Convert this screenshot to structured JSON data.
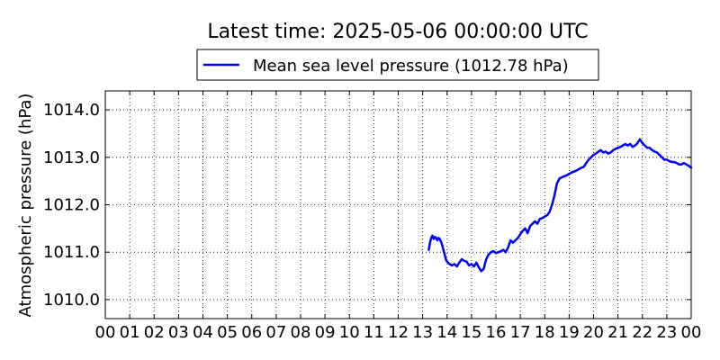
{
  "chart_data": {
    "type": "line",
    "title": "Latest time: 2025-05-06 00:00:00 UTC",
    "xlabel": "",
    "ylabel": "Atmospheric pressure (hPa)",
    "xlim": [
      0,
      24
    ],
    "ylim": [
      1009.6,
      1014.4
    ],
    "grid": true,
    "legend_position": "top-center",
    "x_tick_labels": [
      "00",
      "01",
      "02",
      "03",
      "04",
      "05",
      "06",
      "07",
      "08",
      "09",
      "10",
      "11",
      "12",
      "13",
      "14",
      "15",
      "16",
      "17",
      "18",
      "19",
      "20",
      "21",
      "22",
      "23",
      "00"
    ],
    "y_ticks": [
      1010.0,
      1011.0,
      1012.0,
      1013.0,
      1014.0
    ],
    "y_tick_labels": [
      "1010.0",
      "1011.0",
      "1012.0",
      "1013.0",
      "1014.0"
    ],
    "series": [
      {
        "name": "Mean sea level pressure (1012.78 hPa)",
        "color": "#0000ff",
        "x": [
          13.25,
          13.3,
          13.35,
          13.4,
          13.45,
          13.5,
          13.55,
          13.6,
          13.65,
          13.7,
          13.75,
          13.8,
          13.85,
          13.9,
          13.95,
          14.0,
          14.1,
          14.2,
          14.3,
          14.4,
          14.5,
          14.6,
          14.7,
          14.8,
          14.9,
          15.0,
          15.1,
          15.2,
          15.3,
          15.4,
          15.5,
          15.6,
          15.7,
          15.8,
          15.9,
          16.0,
          16.1,
          16.2,
          16.3,
          16.4,
          16.5,
          16.6,
          16.7,
          16.8,
          16.9,
          17.0,
          17.1,
          17.2,
          17.3,
          17.4,
          17.5,
          17.6,
          17.7,
          17.8,
          17.9,
          18.0,
          18.1,
          18.2,
          18.3,
          18.4,
          18.5,
          18.6,
          18.7,
          18.8,
          18.9,
          19.0,
          19.1,
          19.2,
          19.3,
          19.4,
          19.5,
          19.6,
          19.7,
          19.8,
          19.9,
          20.0,
          20.1,
          20.2,
          20.3,
          20.4,
          20.5,
          20.6,
          20.7,
          20.8,
          20.9,
          21.0,
          21.1,
          21.2,
          21.3,
          21.4,
          21.5,
          21.6,
          21.7,
          21.8,
          21.9,
          22.0,
          22.1,
          22.2,
          22.3,
          22.4,
          22.5,
          22.6,
          22.7,
          22.8,
          22.9,
          23.0,
          23.1,
          23.2,
          23.3,
          23.4,
          23.5,
          23.6,
          23.7,
          23.8,
          23.9,
          24.0
        ],
        "values": [
          1011.05,
          1011.2,
          1011.3,
          1011.35,
          1011.28,
          1011.32,
          1011.3,
          1011.25,
          1011.3,
          1011.28,
          1011.22,
          1011.15,
          1011.05,
          1010.95,
          1010.85,
          1010.8,
          1010.75,
          1010.72,
          1010.75,
          1010.7,
          1010.78,
          1010.85,
          1010.82,
          1010.8,
          1010.72,
          1010.75,
          1010.7,
          1010.78,
          1010.68,
          1010.6,
          1010.65,
          1010.85,
          1010.95,
          1011.0,
          1011.02,
          1010.98,
          1011.0,
          1011.02,
          1011.05,
          1011.0,
          1011.1,
          1011.25,
          1011.2,
          1011.25,
          1011.3,
          1011.38,
          1011.45,
          1011.5,
          1011.4,
          1011.55,
          1011.6,
          1011.65,
          1011.6,
          1011.7,
          1011.72,
          1011.75,
          1011.78,
          1011.85,
          1012.0,
          1012.2,
          1012.45,
          1012.55,
          1012.58,
          1012.6,
          1012.62,
          1012.65,
          1012.68,
          1012.7,
          1012.72,
          1012.75,
          1012.78,
          1012.8,
          1012.88,
          1012.95,
          1013.0,
          1013.05,
          1013.08,
          1013.12,
          1013.15,
          1013.1,
          1013.12,
          1013.08,
          1013.1,
          1013.15,
          1013.18,
          1013.2,
          1013.22,
          1013.25,
          1013.28,
          1013.25,
          1013.28,
          1013.22,
          1013.25,
          1013.3,
          1013.38,
          1013.3,
          1013.25,
          1013.2,
          1013.2,
          1013.15,
          1013.12,
          1013.1,
          1013.05,
          1013.0,
          1012.95,
          1012.95,
          1012.92,
          1012.9,
          1012.9,
          1012.88,
          1012.85,
          1012.85,
          1012.88,
          1012.85,
          1012.82,
          1012.78
        ]
      }
    ]
  }
}
